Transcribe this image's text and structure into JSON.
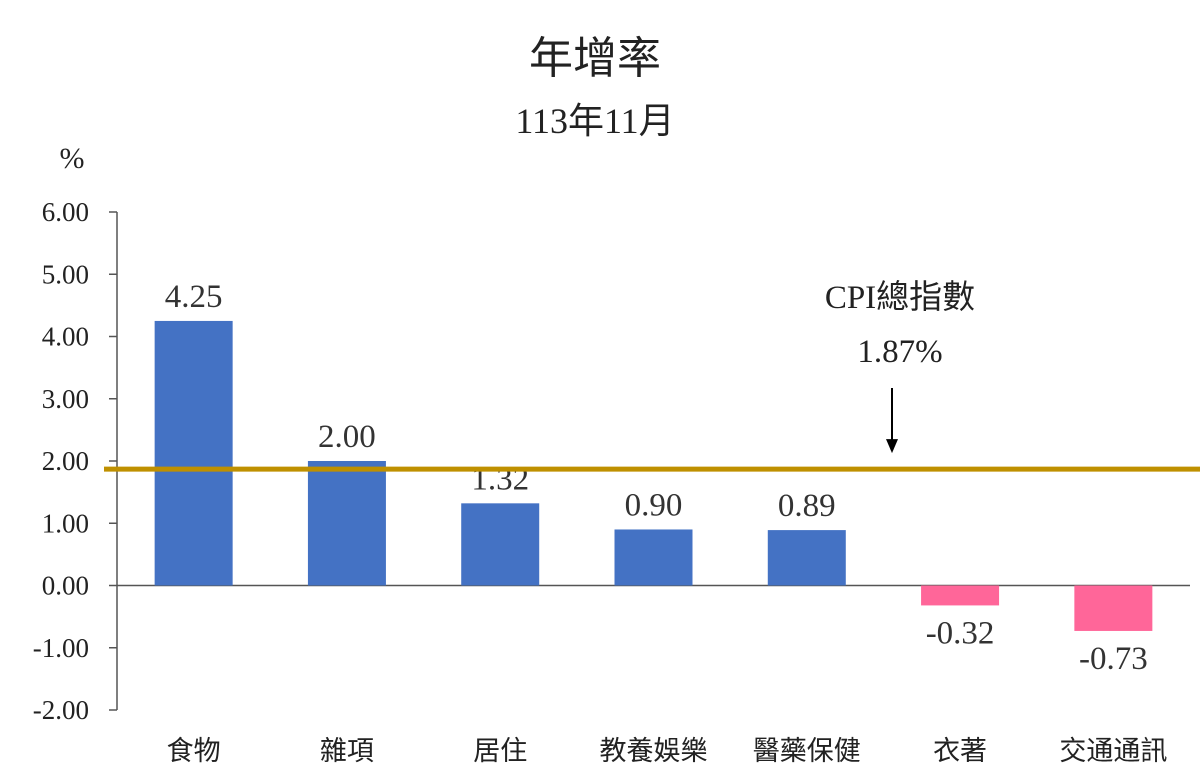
{
  "chart_data": {
    "type": "bar",
    "title": "年增率",
    "subtitle": "113年11月",
    "ylabel": "%",
    "categories": [
      "食物",
      "雜項",
      "居住",
      "教養娛樂",
      "醫藥保健",
      "衣著",
      "交通通訊"
    ],
    "values": [
      4.25,
      2.0,
      1.32,
      0.9,
      0.89,
      -0.32,
      -0.73
    ],
    "data_labels": [
      "4.25",
      "2.00",
      "1.32",
      "0.90",
      "0.89",
      "-0.32",
      "-0.73"
    ],
    "ylim": [
      -2.0,
      6.0
    ],
    "yticks": [
      "6.00",
      "5.00",
      "4.00",
      "3.00",
      "2.00",
      "1.00",
      "0.00",
      "-1.00",
      "-2.00"
    ],
    "reference_line": {
      "value": 1.87,
      "label_line1": "CPI總指數",
      "label_line2": "1.87%"
    },
    "grid": false,
    "legend": "none",
    "colors": {
      "positive": "#4472C4",
      "negative": "#FF6699",
      "reference": "#BF9000"
    }
  }
}
